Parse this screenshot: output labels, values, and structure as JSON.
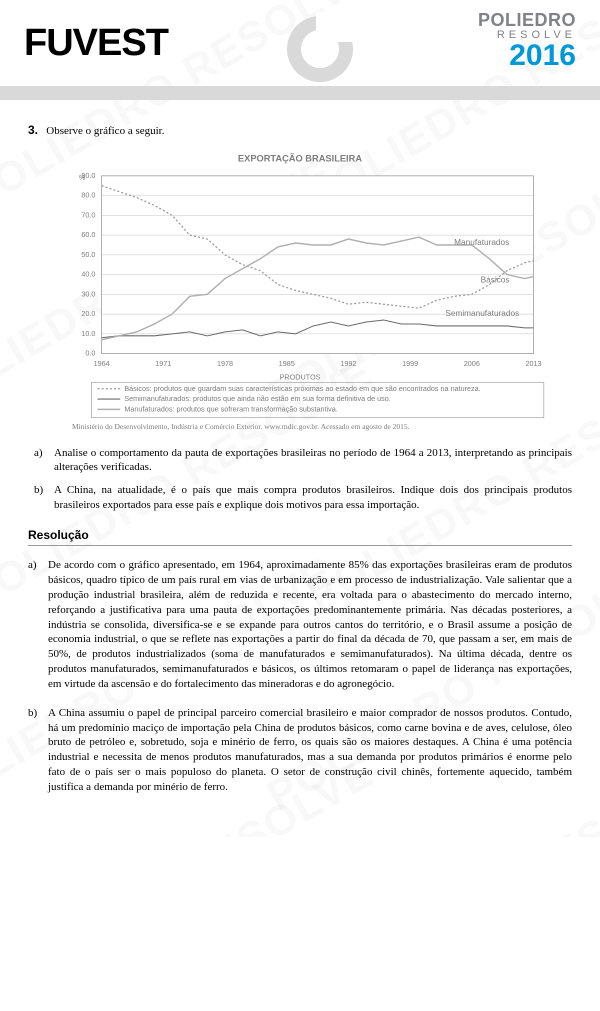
{
  "header": {
    "exam": "FUVEST",
    "brand": "POLIEDRO",
    "sub": "RESOLVE",
    "year": "2016",
    "brand_color": "#818285",
    "year_color": "#0098d7",
    "logo_color": "#d9d9d9"
  },
  "question": {
    "number": "3.",
    "prompt": "Observe o gráfico a seguir.",
    "caption": "Ministério do Desenvolvimento, Indústria e Comércio Exterior. www.mdic.gov.br. Acessado em agosto de 2015.",
    "parts": [
      {
        "label": "a)",
        "text": "Analise o comportamento da pauta de exportações brasileiras no período de 1964 a 2013, interpretando as principais alterações verificadas."
      },
      {
        "label": "b)",
        "text": "A China, na atualidade, é o país que mais compra produtos brasileiros. Indique dois dos principais produtos brasileiros exportados para esse país e explique dois motivos para essa importação."
      }
    ]
  },
  "chart": {
    "title": "EXPORTAÇÃO BRASILEIRA",
    "legend_title": "PRODUTOS",
    "x_years": [
      1964,
      1971,
      1978,
      1985,
      1992,
      1999,
      2006,
      2013
    ],
    "ylim": [
      0,
      90
    ],
    "ytick_step": 10,
    "background_color": "#ffffff",
    "grid_color": "#b8b8b8",
    "axis_color": "#808080",
    "font_color": "#7d7d7d",
    "title_fontsize": 9,
    "tick_fontsize": 7,
    "legend_fontsize": 7,
    "series": [
      {
        "name": "Básicos",
        "label_text": "Básicos",
        "label_pos": {
          "x": 2007,
          "y": 36
        },
        "color": "#9a9a9a",
        "dash": "2,2",
        "width": 1.2,
        "legend": "Básicos: produtos que guardam suas características próximas ao estado em que são encontrados na natureza.",
        "data": [
          [
            1964,
            85
          ],
          [
            1966,
            82
          ],
          [
            1968,
            79
          ],
          [
            1970,
            75
          ],
          [
            1972,
            70
          ],
          [
            1974,
            60
          ],
          [
            1976,
            58
          ],
          [
            1978,
            50
          ],
          [
            1980,
            45
          ],
          [
            1982,
            42
          ],
          [
            1984,
            35
          ],
          [
            1986,
            32
          ],
          [
            1988,
            30
          ],
          [
            1990,
            28
          ],
          [
            1992,
            25
          ],
          [
            1994,
            26
          ],
          [
            1996,
            25
          ],
          [
            1998,
            24
          ],
          [
            2000,
            23
          ],
          [
            2002,
            27
          ],
          [
            2004,
            29
          ],
          [
            2006,
            30
          ],
          [
            2008,
            35
          ],
          [
            2010,
            42
          ],
          [
            2012,
            46
          ],
          [
            2013,
            47
          ]
        ]
      },
      {
        "name": "Semimanufaturados",
        "label_text": "Semimanufaturados",
        "label_pos": {
          "x": 2003,
          "y": 19
        },
        "color": "#6b6b6b",
        "dash": "none",
        "width": 1.0,
        "legend": "Semimanufaturados: produtos que ainda não estão em sua forma definitiva de uso.",
        "data": [
          [
            1964,
            8
          ],
          [
            1966,
            9
          ],
          [
            1968,
            9
          ],
          [
            1970,
            9
          ],
          [
            1972,
            10
          ],
          [
            1974,
            11
          ],
          [
            1976,
            9
          ],
          [
            1978,
            11
          ],
          [
            1980,
            12
          ],
          [
            1982,
            9
          ],
          [
            1984,
            11
          ],
          [
            1986,
            10
          ],
          [
            1988,
            14
          ],
          [
            1990,
            16
          ],
          [
            1992,
            14
          ],
          [
            1994,
            16
          ],
          [
            1996,
            17
          ],
          [
            1998,
            15
          ],
          [
            2000,
            15
          ],
          [
            2002,
            14
          ],
          [
            2004,
            14
          ],
          [
            2006,
            14
          ],
          [
            2008,
            14
          ],
          [
            2010,
            14
          ],
          [
            2012,
            13
          ],
          [
            2013,
            13
          ]
        ]
      },
      {
        "name": "Manufaturados",
        "label_text": "Manufaturados",
        "label_pos": {
          "x": 2004,
          "y": 55
        },
        "color": "#b0b0b0",
        "dash": "none",
        "width": 1.4,
        "legend": "Manufaturados: produtos que sofreram transformação substantiva.",
        "data": [
          [
            1964,
            7
          ],
          [
            1966,
            9
          ],
          [
            1968,
            11
          ],
          [
            1970,
            15
          ],
          [
            1972,
            20
          ],
          [
            1974,
            29
          ],
          [
            1976,
            30
          ],
          [
            1978,
            38
          ],
          [
            1980,
            43
          ],
          [
            1982,
            48
          ],
          [
            1984,
            54
          ],
          [
            1986,
            56
          ],
          [
            1988,
            55
          ],
          [
            1990,
            55
          ],
          [
            1992,
            58
          ],
          [
            1994,
            56
          ],
          [
            1996,
            55
          ],
          [
            1998,
            57
          ],
          [
            2000,
            59
          ],
          [
            2002,
            55
          ],
          [
            2004,
            55
          ],
          [
            2006,
            55
          ],
          [
            2008,
            48
          ],
          [
            2010,
            40
          ],
          [
            2012,
            38
          ],
          [
            2013,
            39
          ]
        ]
      }
    ]
  },
  "resolution": {
    "title": "Resolução",
    "items": [
      {
        "label": "a)",
        "text": "De acordo com o gráfico apresentado, em 1964, aproximadamente 85% das exportações brasileiras eram de produtos básicos, quadro típico de um país rural em vias de urbanização e em processo de industrialização. Vale salientar que a produção industrial brasileira, além de reduzida e recente, era voltada para o abastecimento do mercado interno, reforçando a justificativa para uma pauta de exportações predominantemente primária. Nas décadas posteriores, a indústria se consolida, diversifica-se e se expande para outros cantos do território, e o Brasil assume a posição de economia industrial, o que se reflete nas exportações a partir do final da década de 70, que passam a ser, em mais de 50%, de produtos industrializados (soma de manufaturados e semimanufaturados). Na última década, dentre os produtos manufaturados, semimanufaturados e básicos, os últimos retomaram o papel de liderança nas exportações, em virtude da ascensão e do fortalecimento das mineradoras e do agronegócio."
      },
      {
        "label": "b)",
        "text": "A China assumiu o papel de principal parceiro comercial brasileiro e maior comprador de nossos produtos. Contudo, há um predomínio maciço de importação pela China de produtos básicos, como carne bovina e de aves, celulose, óleo bruto de petróleo e, sobretudo, soja e minério de ferro, os quais são os maiores destaques. A China é uma potência industrial e necessita de menos produtos manufaturados, mas a sua demanda por produtos primários é enorme pelo fato de o país ser o mais populoso do planeta. O setor de construção civil chinês, fortemente aquecido, também justifica a demanda por minério de ferro."
      }
    ]
  },
  "watermark": {
    "text": "POLIEDRO RESOLVE",
    "color": "rgba(200,200,200,0.12)",
    "fontsize": 42
  }
}
